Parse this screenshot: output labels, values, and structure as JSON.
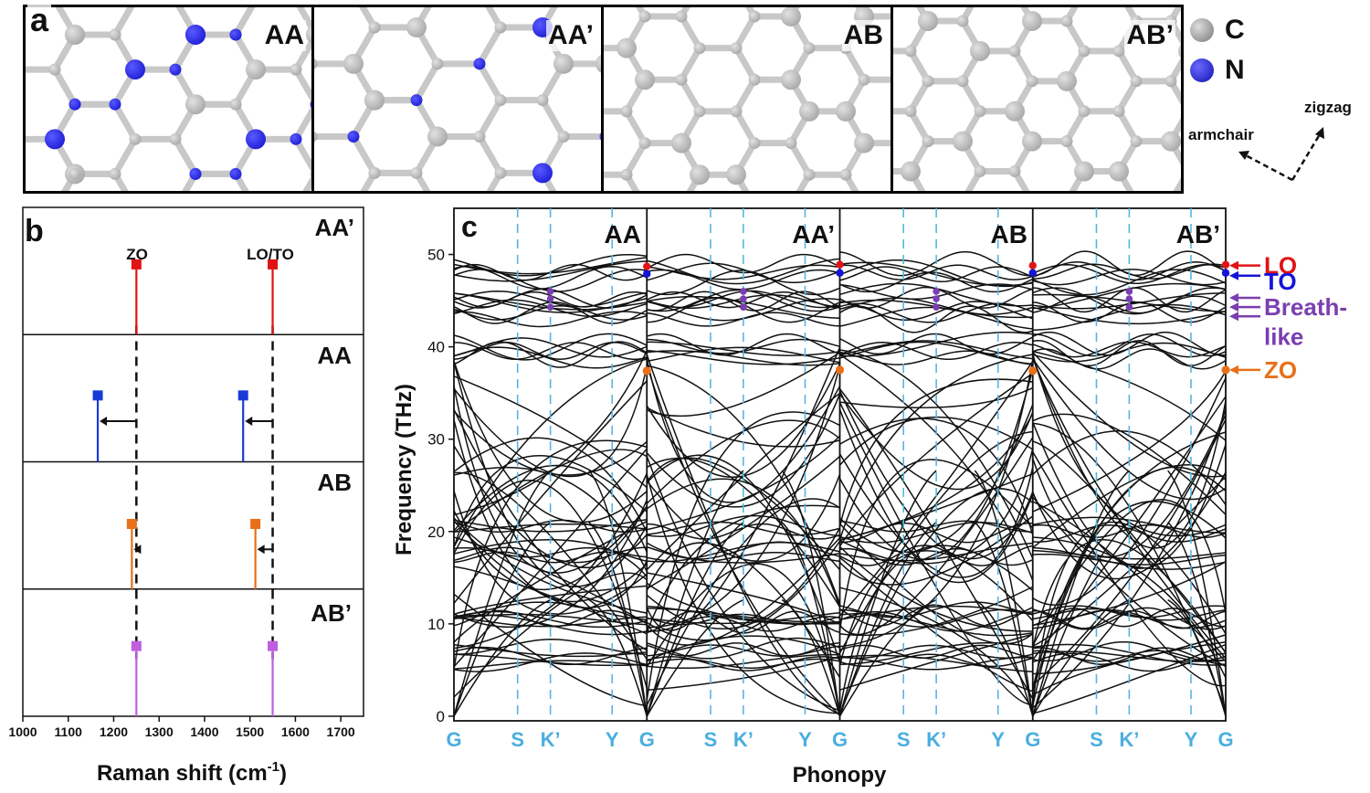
{
  "panel_a": {
    "letter": "a",
    "structures": [
      "AA",
      "AA’",
      "AB",
      "AB’"
    ],
    "legend": [
      {
        "label": "C",
        "color": "#9a9a9a"
      },
      {
        "label": "N",
        "color": "#1a1ad6"
      }
    ],
    "directions": {
      "armchair": "armchair",
      "zigzag": "zigzag"
    }
  },
  "panel_b": {
    "letter": "b",
    "xlabel": "Raman shift (cm",
    "xlabel_sup": "-1",
    "xlabel_end": ")",
    "xticks": [
      1000,
      1100,
      1200,
      1300,
      1400,
      1500,
      1600,
      1700
    ],
    "reference_lines": {
      "ZO": 1250,
      "LO/TO": 1550
    },
    "peak_labels": [
      "ZO",
      "LO/TO"
    ]
  },
  "panel_c": {
    "letter": "c",
    "ylabel": "Frequency (THz)",
    "xlabel": "Phonopy",
    "yticks": [
      0,
      10,
      20,
      30,
      40,
      50
    ],
    "kpoints": [
      "G",
      "S",
      "K’",
      "Y",
      "G",
      "S",
      "K’",
      "Y",
      "G",
      "S",
      "K’",
      "Y",
      "G",
      "S",
      "K’",
      "Y",
      "G"
    ],
    "structures": [
      "AA",
      "AA’",
      "AB",
      "AB’"
    ],
    "mode_labels": [
      {
        "text": "LO",
        "color": "#e01414"
      },
      {
        "text": "TO",
        "color": "#1414d8"
      },
      {
        "text": "Breath-",
        "color": "#7a3fb0"
      },
      {
        "text": "like",
        "color": "#7a3fb0"
      },
      {
        "text": "ZO",
        "color": "#e8701a"
      }
    ]
  },
  "chart_data": [
    {
      "type": "bar",
      "title": "",
      "xlabel": "Raman shift (cm-1)",
      "ylabel": "",
      "xlim": [
        1000,
        1750
      ],
      "grid": false,
      "series": [
        {
          "name": "AA’",
          "color": "#e01414",
          "x": [
            1250,
            1550
          ]
        },
        {
          "name": "AA",
          "color": "#1a3ad6",
          "x": [
            1165,
            1485
          ]
        },
        {
          "name": "AB",
          "color": "#e8701a",
          "x": [
            1240,
            1512
          ]
        },
        {
          "name": "AB’",
          "color": "#c05ee0",
          "x": [
            1250,
            1550
          ]
        }
      ]
    },
    {
      "type": "line",
      "title": "",
      "xlabel": "Phonopy",
      "ylabel": "Frequency (THz)",
      "ylim": [
        0,
        50
      ],
      "x_categories": [
        "G",
        "S",
        "K’",
        "Y",
        "G"
      ],
      "series": [
        {
          "name": "AA",
          "gamma_modes": {
            "LO": 48.7,
            "TO": 47.9,
            "ZO": 37.4
          }
        },
        {
          "name": "AA’",
          "gamma_modes": {
            "LO": 48.9,
            "TO": 48.0,
            "ZO": 37.5
          }
        },
        {
          "name": "AB",
          "gamma_modes": {
            "LO": 48.8,
            "TO": 48.0,
            "ZO": 37.4
          }
        },
        {
          "name": "AB’",
          "gamma_modes": {
            "LO": 48.9,
            "TO": 48.0,
            "ZO": 37.5
          }
        }
      ],
      "flat_bands_approx": [
        48.5,
        47.5,
        45.5,
        44.5,
        43.5,
        40,
        39,
        20.3,
        17.5,
        11,
        10.5,
        7,
        6
      ]
    }
  ]
}
